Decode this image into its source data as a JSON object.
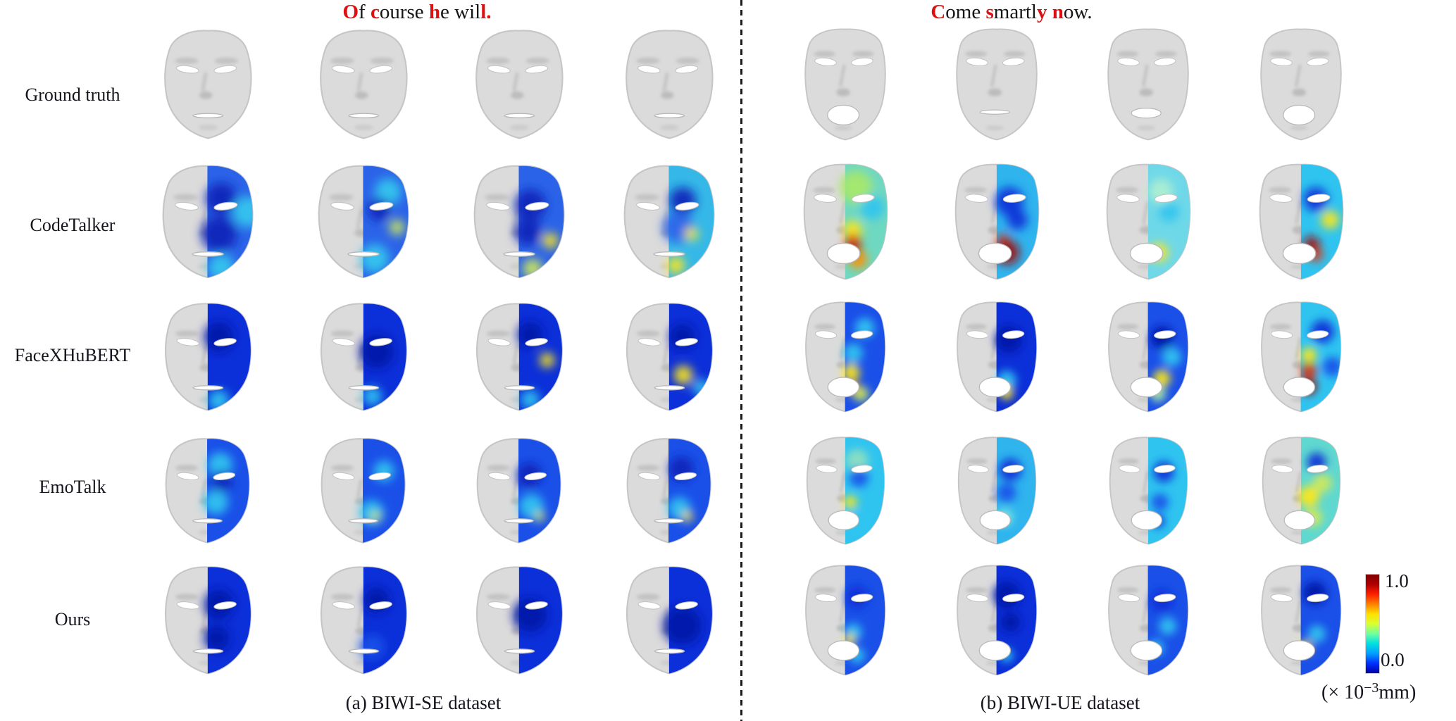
{
  "titles": {
    "left": {
      "full_text": "Of course he will.",
      "segments": [
        {
          "t": "O",
          "red": true
        },
        {
          "t": "f ",
          "red": false
        },
        {
          "t": "c",
          "red": true
        },
        {
          "t": "ourse ",
          "red": false
        },
        {
          "t": "h",
          "red": true
        },
        {
          "t": "e ",
          "red": false
        },
        {
          "t": "wil",
          "red": false
        },
        {
          "t": "l.",
          "red": true
        }
      ]
    },
    "right": {
      "full_text": "Come smartly now.",
      "segments": [
        {
          "t": "C",
          "red": true
        },
        {
          "t": "ome ",
          "red": false
        },
        {
          "t": "s",
          "red": true
        },
        {
          "t": "martl",
          "red": false
        },
        {
          "t": "y",
          "red": true
        },
        {
          "t": " ",
          "red": false
        },
        {
          "t": "n",
          "red": true
        },
        {
          "t": "ow.",
          "red": false
        }
      ]
    },
    "accent_red": "#dd0f0f"
  },
  "rows": [
    {
      "label": "Ground truth"
    },
    {
      "label": "CodeTalker"
    },
    {
      "label": "FaceXHuBERT"
    },
    {
      "label": "EmoTalk"
    },
    {
      "label": "Ours"
    }
  ],
  "panels": [
    {
      "caption": "(a) BIWI-SE dataset"
    },
    {
      "caption": "(b) BIWI-UE dataset"
    }
  ],
  "colorbar": {
    "max": "1.0",
    "min": "0.0",
    "unit_open": "(× 10",
    "unit_sup": "−3",
    "unit_close": "mm)",
    "colors_bottom_to_top": [
      "#0000a8",
      "#0030ff",
      "#00a0ff",
      "#00e0e0",
      "#70ffa0",
      "#d8ff30",
      "#ffe000",
      "#ff8000",
      "#ff2000",
      "#b00000",
      "#7f0000"
    ]
  },
  "grid": {
    "left": [
      [
        {
          "t": "gt",
          "m": "slit"
        },
        {
          "t": "gt",
          "m": "slit"
        },
        {
          "t": "gt",
          "m": "slit"
        },
        {
          "t": "gt",
          "m": "slit"
        }
      ],
      [
        {
          "t": "hm",
          "m": "slit",
          "base": "#2b63e8",
          "spots": [
            [
              "#0a24b8",
              62,
              34,
              14
            ],
            [
              "#0a24b8",
              60,
              66,
              16
            ],
            [
              "#35c8ee",
              86,
              46,
              14
            ],
            [
              "#35c8ee",
              62,
              96,
              12
            ]
          ]
        },
        {
          "t": "hm",
          "m": "slit",
          "base": "#2b63e8",
          "spots": [
            [
              "#35c8ee",
              72,
              28,
              12
            ],
            [
              "#0a24b8",
              64,
              44,
              10
            ],
            [
              "#cfe85a",
              80,
              60,
              7
            ],
            [
              "#35c8ee",
              60,
              88,
              13
            ]
          ]
        },
        {
          "t": "hm",
          "m": "slit",
          "base": "#2b63e8",
          "spots": [
            [
              "#0a24b8",
              60,
              40,
              14
            ],
            [
              "#0a24b8",
              58,
              64,
              12
            ],
            [
              "#ffe714",
              78,
              72,
              7
            ],
            [
              "#cfe85a",
              62,
              97,
              9
            ]
          ]
        },
        {
          "t": "hm",
          "m": "slit",
          "base": "#35b8e8",
          "spots": [
            [
              "#0a24b8",
              62,
              36,
              12
            ],
            [
              "#2b63e8",
              58,
              60,
              14
            ],
            [
              "#ffe714",
              70,
              66,
              6
            ],
            [
              "#ffe714",
              56,
              94,
              8
            ]
          ]
        }
      ],
      [
        {
          "t": "hm",
          "m": "slit",
          "base": "#0b2fd8",
          "spots": [
            [
              "#0618a8",
              60,
              36,
              14
            ],
            [
              "#2fc4f0",
              60,
              96,
              10
            ]
          ]
        },
        {
          "t": "hm",
          "m": "slit",
          "base": "#0b2fd8",
          "spots": [
            [
              "#0618a8",
              62,
              50,
              16
            ],
            [
              "#2fc4f0",
              58,
              92,
              9
            ]
          ]
        },
        {
          "t": "hm",
          "m": "slit",
          "base": "#0b2fd8",
          "spots": [
            [
              "#0618a8",
              60,
              34,
              12
            ],
            [
              "#ffe714",
              76,
              58,
              7
            ],
            [
              "#2fc4f0",
              60,
              95,
              9
            ]
          ]
        },
        {
          "t": "hm",
          "m": "slit",
          "base": "#0b2fd8",
          "spots": [
            [
              "#0618a8",
              62,
              36,
              12
            ],
            [
              "#ffe714",
              63,
              72,
              9
            ],
            [
              "#2fc4f0",
              80,
              84,
              8
            ]
          ]
        }
      ],
      [
        {
          "t": "hm",
          "m": "slit",
          "base": "#1a50e8",
          "spots": [
            [
              "#2fc4f0",
              62,
              30,
              12
            ],
            [
              "#2fc4f0",
              58,
              66,
              12
            ],
            [
              "#0a24b8",
              64,
              46,
              10
            ]
          ]
        },
        {
          "t": "hm",
          "m": "slit",
          "base": "#1a50e8",
          "spots": [
            [
              "#2fc4f0",
              70,
              36,
              10
            ],
            [
              "#2fc4f0",
              58,
              76,
              12
            ],
            [
              "#cfe85a",
              62,
              80,
              5
            ]
          ]
        },
        {
          "t": "hm",
          "m": "slit",
          "base": "#1a50e8",
          "spots": [
            [
              "#0a24b8",
              60,
              40,
              12
            ],
            [
              "#2fc4f0",
              62,
              70,
              12
            ],
            [
              "#cfe85a",
              70,
              80,
              5
            ]
          ]
        },
        {
          "t": "hm",
          "m": "slit",
          "base": "#1a50e8",
          "spots": [
            [
              "#0a24b8",
              62,
              34,
              12
            ],
            [
              "#2fc4f0",
              60,
              72,
              11
            ],
            [
              "#ffe714",
              68,
              80,
              5
            ]
          ]
        }
      ],
      [
        {
          "t": "hm",
          "m": "slit",
          "base": "#0b2fd8",
          "spots": [
            [
              "#0618a8",
              60,
              40,
              14
            ],
            [
              "#0618a8",
              58,
              72,
              12
            ]
          ]
        },
        {
          "t": "hm",
          "m": "slit",
          "base": "#0b2fd8",
          "spots": [
            [
              "#0618a8",
              62,
              36,
              12
            ],
            [
              "#1a50e8",
              58,
              80,
              12
            ]
          ]
        },
        {
          "t": "hm",
          "m": "slit",
          "base": "#0b2fd8",
          "spots": [
            [
              "#0618a8",
              60,
              50,
              16
            ]
          ]
        },
        {
          "t": "hm",
          "m": "slit",
          "base": "#0b2fd8",
          "spots": [
            [
              "#0618a8",
              62,
              60,
              18
            ]
          ]
        }
      ]
    ],
    "right": [
      [
        {
          "t": "gt",
          "m": "open"
        },
        {
          "t": "gt",
          "m": "slit"
        },
        {
          "t": "gt",
          "m": "mid"
        },
        {
          "t": "gt",
          "m": "open"
        }
      ],
      [
        {
          "t": "hm",
          "m": "open",
          "base": "#6fd8c0",
          "spots": [
            [
              "#a8e86a",
              60,
              26,
              16
            ],
            [
              "#2fc4f0",
              76,
              46,
              12
            ],
            [
              "#ffe714",
              57,
              68,
              9
            ],
            [
              "#e33010",
              57,
              80,
              8
            ],
            [
              "#9c0c0c",
              58,
              88,
              7
            ],
            [
              "#ff9000",
              62,
              97,
              9
            ]
          ]
        },
        {
          "t": "hm",
          "m": "open",
          "base": "#2fb4ee",
          "spots": [
            [
              "#0b2fd8",
              62,
              40,
              14
            ],
            [
              "#0b2fd8",
              70,
              58,
              10
            ],
            [
              "#e33010",
              56,
              78,
              6
            ],
            [
              "#9c0c0c",
              60,
              90,
              12
            ]
          ]
        },
        {
          "t": "hm",
          "m": "open",
          "base": "#6fd8e8",
          "spots": [
            [
              "#aff0d0",
              62,
              30,
              12
            ],
            [
              "#2fc4f0",
              70,
              50,
              10
            ],
            [
              "#ffe714",
              60,
              90,
              9
            ]
          ]
        },
        {
          "t": "hm",
          "m": "open",
          "base": "#2fc4f0",
          "spots": [
            [
              "#0b2fd8",
              64,
              38,
              12
            ],
            [
              "#ffe714",
              78,
              58,
              9
            ],
            [
              "#9c0c0c",
              60,
              82,
              8
            ],
            [
              "#e33010",
              64,
              92,
              7
            ]
          ]
        }
      ],
      [
        {
          "t": "hm",
          "m": "open",
          "base": "#1a50e8",
          "spots": [
            [
              "#2fc4f0",
              70,
              30,
              10
            ],
            [
              "#2fc4f0",
              58,
              56,
              10
            ],
            [
              "#ffe714",
              56,
              76,
              9
            ],
            [
              "#ff9000",
              58,
              92,
              7
            ],
            [
              "#cfe85a",
              66,
              98,
              8
            ]
          ]
        },
        {
          "t": "hm",
          "m": "open",
          "base": "#0b2fd8",
          "spots": [
            [
              "#0618a8",
              62,
              42,
              14
            ],
            [
              "#2fc4f0",
              60,
              84,
              10
            ],
            [
              "#ffe714",
              60,
              97,
              7
            ]
          ]
        },
        {
          "t": "hm",
          "m": "open",
          "base": "#1a50e8",
          "spots": [
            [
              "#0618a8",
              64,
              40,
              12
            ],
            [
              "#2fc4f0",
              74,
              60,
              10
            ],
            [
              "#ffe714",
              64,
              82,
              9
            ],
            [
              "#aff0a0",
              60,
              98,
              8
            ]
          ]
        },
        {
          "t": "hm",
          "m": "open",
          "base": "#2fc4f0",
          "spots": [
            [
              "#0b2fd8",
              72,
              34,
              12
            ],
            [
              "#ffe714",
              58,
              58,
              8
            ],
            [
              "#e33010",
              58,
              74,
              8
            ],
            [
              "#9c0c0c",
              57,
              90,
              9
            ],
            [
              "#1a50e8",
              82,
              70,
              10
            ]
          ]
        }
      ],
      [
        {
          "t": "hm",
          "m": "open",
          "base": "#2fc4f0",
          "spots": [
            [
              "#8fe0c0",
              62,
              28,
              12
            ],
            [
              "#1a50e8",
              64,
              46,
              10
            ],
            [
              "#ffe714",
              55,
              72,
              7
            ],
            [
              "#2fc4f0",
              60,
              92,
              10
            ]
          ]
        },
        {
          "t": "hm",
          "m": "open",
          "base": "#2fb4ee",
          "spots": [
            [
              "#0b2fd8",
              64,
              38,
              12
            ],
            [
              "#1a50e8",
              60,
              62,
              10
            ],
            [
              "#7fe8e0",
              58,
              88,
              9
            ]
          ]
        },
        {
          "t": "hm",
          "m": "open",
          "base": "#2fc4f0",
          "spots": [
            [
              "#0b2fd8",
              66,
              40,
              11
            ],
            [
              "#1a50e8",
              62,
              72,
              9
            ],
            [
              "#0b2fd8",
              60,
              92,
              7
            ]
          ]
        },
        {
          "t": "hm",
          "m": "open",
          "base": "#5fd8d0",
          "spots": [
            [
              "#0b2fd8",
              66,
              30,
              10
            ],
            [
              "#cfe85a",
              72,
              52,
              10
            ],
            [
              "#ffe714",
              58,
              66,
              11
            ],
            [
              "#cfe85a",
              62,
              88,
              10
            ]
          ]
        }
      ],
      [
        {
          "t": "hm",
          "m": "open",
          "base": "#1a50e8",
          "spots": [
            [
              "#0b2fd8",
              62,
              36,
              12
            ],
            [
              "#2fc4f0",
              58,
              72,
              9
            ],
            [
              "#ffe714",
              54,
              80,
              6
            ],
            [
              "#2fc4f0",
              62,
              96,
              8
            ]
          ]
        },
        {
          "t": "hm",
          "m": "open",
          "base": "#0b2fd8",
          "spots": [
            [
              "#0618a8",
              60,
              34,
              14
            ],
            [
              "#0618a8",
              64,
              62,
              10
            ],
            [
              "#2fc4f0",
              60,
              96,
              7
            ]
          ]
        },
        {
          "t": "hm",
          "m": "open",
          "base": "#1a50e8",
          "spots": [
            [
              "#0b2fd8",
              64,
              40,
              12
            ],
            [
              "#2fc4f0",
              70,
              66,
              9
            ],
            [
              "#2fc4f0",
              58,
              88,
              8
            ]
          ]
        },
        {
          "t": "hm",
          "m": "open",
          "base": "#1a50e8",
          "spots": [
            [
              "#0618a8",
              64,
              32,
              12
            ],
            [
              "#2fc4f0",
              66,
              74,
              9
            ],
            [
              "#ffe714",
              54,
              88,
              7
            ]
          ]
        }
      ]
    ]
  }
}
